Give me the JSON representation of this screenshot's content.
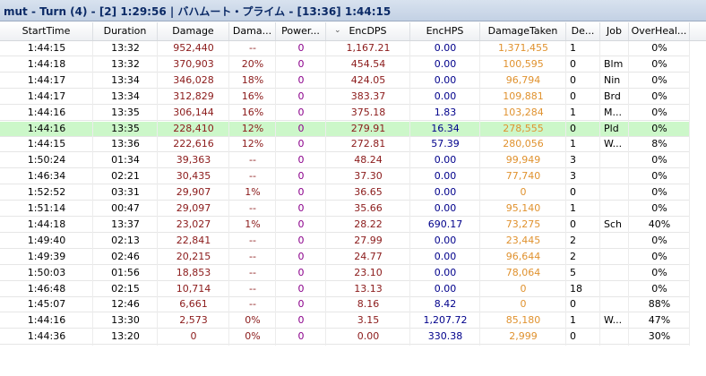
{
  "window": {
    "title": "mut - Turn (4) - [2] 1:29:56 | バハムート・プライム - [13:36] 1:44:15"
  },
  "colors": {
    "damage": "#8b1a1a",
    "power": "#8b008b",
    "encdps": "#8b1a1a",
    "enchps": "#00008b",
    "taken": "#e0922f",
    "selected_row": "#ccf7c9"
  },
  "columns": [
    {
      "key": "start",
      "label": "StartTime"
    },
    {
      "key": "duration",
      "label": "Duration"
    },
    {
      "key": "damage",
      "label": "Damage"
    },
    {
      "key": "damagepct",
      "label": "Dama..."
    },
    {
      "key": "power",
      "label": "Power..."
    },
    {
      "key": "encdps",
      "label": "EncDPS"
    },
    {
      "key": "enchps",
      "label": "EncHPS"
    },
    {
      "key": "taken",
      "label": "DamageTaken"
    },
    {
      "key": "deaths",
      "label": "De..."
    },
    {
      "key": "job",
      "label": "Job"
    },
    {
      "key": "overheal",
      "label": "OverHeal..."
    }
  ],
  "rows": [
    {
      "start": "1:44:15",
      "duration": "13:32",
      "damage": "952,440",
      "damagepct": "--",
      "power": "0",
      "encdps": "1,167.21",
      "enchps": "0.00",
      "taken": "1,371,455",
      "deaths": "1",
      "job": "",
      "overheal": "0%"
    },
    {
      "start": "1:44:18",
      "duration": "13:32",
      "damage": "370,903",
      "damagepct": "20%",
      "power": "0",
      "encdps": "454.54",
      "enchps": "0.00",
      "taken": "100,595",
      "deaths": "0",
      "job": "Blm",
      "overheal": "0%"
    },
    {
      "start": "1:44:17",
      "duration": "13:34",
      "damage": "346,028",
      "damagepct": "18%",
      "power": "0",
      "encdps": "424.05",
      "enchps": "0.00",
      "taken": "96,794",
      "deaths": "0",
      "job": "Nin",
      "overheal": "0%"
    },
    {
      "start": "1:44:17",
      "duration": "13:34",
      "damage": "312,829",
      "damagepct": "16%",
      "power": "0",
      "encdps": "383.37",
      "enchps": "0.00",
      "taken": "109,881",
      "deaths": "0",
      "job": "Brd",
      "overheal": "0%"
    },
    {
      "start": "1:44:16",
      "duration": "13:35",
      "damage": "306,144",
      "damagepct": "16%",
      "power": "0",
      "encdps": "375.18",
      "enchps": "1.83",
      "taken": "103,284",
      "deaths": "1",
      "job": "M...",
      "overheal": "0%"
    },
    {
      "start": "1:44:16",
      "duration": "13:35",
      "damage": "228,410",
      "damagepct": "12%",
      "power": "0",
      "encdps": "279.91",
      "enchps": "16.34",
      "taken": "278,555",
      "deaths": "0",
      "job": "Pld",
      "overheal": "0%",
      "selected": true
    },
    {
      "start": "1:44:15",
      "duration": "13:36",
      "damage": "222,616",
      "damagepct": "12%",
      "power": "0",
      "encdps": "272.81",
      "enchps": "57.39",
      "taken": "280,056",
      "deaths": "1",
      "job": "W...",
      "overheal": "8%"
    },
    {
      "start": "1:50:24",
      "duration": "01:34",
      "damage": "39,363",
      "damagepct": "--",
      "power": "0",
      "encdps": "48.24",
      "enchps": "0.00",
      "taken": "99,949",
      "deaths": "3",
      "job": "",
      "overheal": "0%"
    },
    {
      "start": "1:46:34",
      "duration": "02:21",
      "damage": "30,435",
      "damagepct": "--",
      "power": "0",
      "encdps": "37.30",
      "enchps": "0.00",
      "taken": "77,740",
      "deaths": "3",
      "job": "",
      "overheal": "0%"
    },
    {
      "start": "1:52:52",
      "duration": "03:31",
      "damage": "29,907",
      "damagepct": "1%",
      "power": "0",
      "encdps": "36.65",
      "enchps": "0.00",
      "taken": "0",
      "deaths": "0",
      "job": "",
      "overheal": "0%"
    },
    {
      "start": "1:51:14",
      "duration": "00:47",
      "damage": "29,097",
      "damagepct": "--",
      "power": "0",
      "encdps": "35.66",
      "enchps": "0.00",
      "taken": "95,140",
      "deaths": "1",
      "job": "",
      "overheal": "0%"
    },
    {
      "start": "1:44:18",
      "duration": "13:37",
      "damage": "23,027",
      "damagepct": "1%",
      "power": "0",
      "encdps": "28.22",
      "enchps": "690.17",
      "taken": "73,275",
      "deaths": "0",
      "job": "Sch",
      "overheal": "40%"
    },
    {
      "start": "1:49:40",
      "duration": "02:13",
      "damage": "22,841",
      "damagepct": "--",
      "power": "0",
      "encdps": "27.99",
      "enchps": "0.00",
      "taken": "23,445",
      "deaths": "2",
      "job": "",
      "overheal": "0%"
    },
    {
      "start": "1:49:39",
      "duration": "02:46",
      "damage": "20,215",
      "damagepct": "--",
      "power": "0",
      "encdps": "24.77",
      "enchps": "0.00",
      "taken": "96,644",
      "deaths": "2",
      "job": "",
      "overheal": "0%"
    },
    {
      "start": "1:50:03",
      "duration": "01:56",
      "damage": "18,853",
      "damagepct": "--",
      "power": "0",
      "encdps": "23.10",
      "enchps": "0.00",
      "taken": "78,064",
      "deaths": "5",
      "job": "",
      "overheal": "0%"
    },
    {
      "start": "1:46:48",
      "duration": "02:15",
      "damage": "10,714",
      "damagepct": "--",
      "power": "0",
      "encdps": "13.13",
      "enchps": "0.00",
      "taken": "0",
      "deaths": "18",
      "job": "",
      "overheal": "0%"
    },
    {
      "start": "1:45:07",
      "duration": "12:46",
      "damage": "6,661",
      "damagepct": "--",
      "power": "0",
      "encdps": "8.16",
      "enchps": "8.42",
      "taken": "0",
      "deaths": "0",
      "job": "",
      "overheal": "88%"
    },
    {
      "start": "1:44:16",
      "duration": "13:30",
      "damage": "2,573",
      "damagepct": "0%",
      "power": "0",
      "encdps": "3.15",
      "enchps": "1,207.72",
      "taken": "85,180",
      "deaths": "1",
      "job": "W...",
      "overheal": "47%"
    },
    {
      "start": "1:44:36",
      "duration": "13:20",
      "damage": "0",
      "damagepct": "0%",
      "power": "0",
      "encdps": "0.00",
      "enchps": "330.38",
      "taken": "2,999",
      "deaths": "0",
      "job": "",
      "overheal": "30%"
    }
  ]
}
